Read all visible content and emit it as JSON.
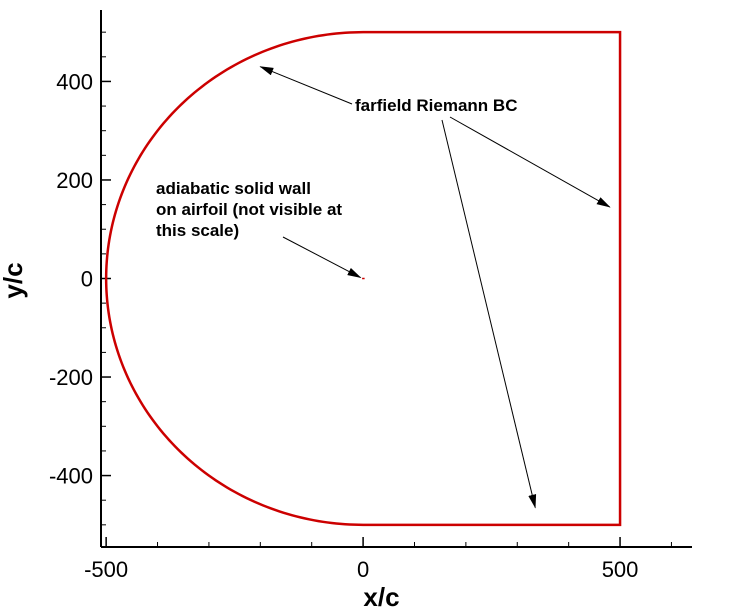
{
  "chart_data": {
    "type": "line",
    "title": "",
    "xlabel": "x/c",
    "ylabel": "y/c",
    "xlim": [
      -510,
      640
    ],
    "ylim": [
      -545,
      545
    ],
    "x_ticks": [
      -500,
      0,
      500
    ],
    "y_ticks": [
      -400,
      -200,
      0,
      200,
      400
    ],
    "x_tick_labels": [
      "-500",
      "0",
      "500"
    ],
    "y_tick_labels": [
      "-400",
      "-200",
      "0",
      "200",
      "400"
    ],
    "x_minor_step": 100,
    "y_minor_step": 50,
    "grid": false,
    "legend": "none",
    "series": [
      {
        "shape": "C-type farfield boundary: semicircle radius 500 centered at origin for x <= 0, straight lines to x = 500",
        "radius": 500,
        "outlet_x": 500,
        "color": "#cc0000"
      }
    ],
    "annotations": {
      "farfield": {
        "label": "farfield Riemann BC",
        "arrow_targets": [
          [
            -200,
            430
          ],
          [
            480,
            145
          ],
          [
            335,
            -465
          ]
        ]
      },
      "wall": {
        "lines": [
          "adiabatic solid wall",
          "on airfoil (not visible at",
          "this scale)"
        ],
        "arrow_target": [
          -5,
          2
        ]
      }
    }
  }
}
